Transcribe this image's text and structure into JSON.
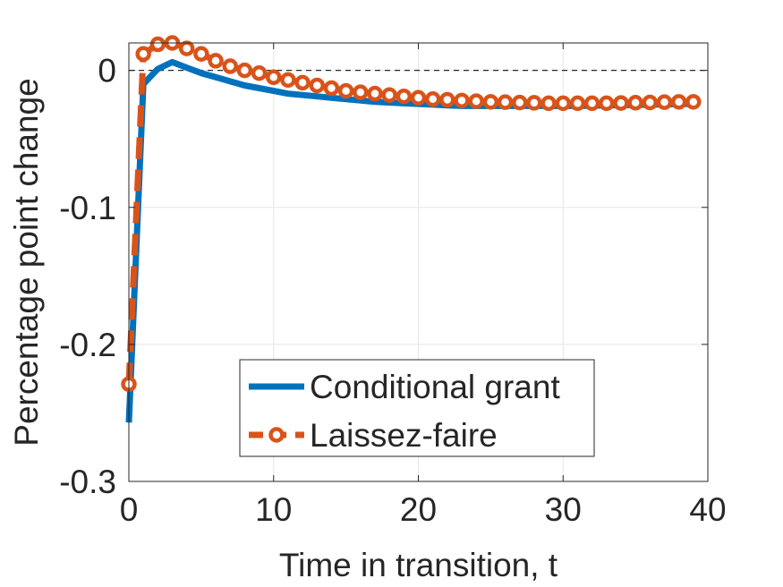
{
  "chart_data": {
    "type": "line",
    "title": "",
    "xlabel": "Time in transition, t",
    "ylabel": "Percentage point change",
    "xlim": [
      0,
      40
    ],
    "ylim": [
      -0.3,
      0.02
    ],
    "xticks": [
      0,
      10,
      20,
      30,
      40
    ],
    "xtick_labels": [
      "0",
      "10",
      "20",
      "30",
      "40"
    ],
    "yticks": [
      0,
      -0.1,
      -0.2,
      -0.3
    ],
    "ytick_labels": [
      "0",
      "-0.1",
      "-0.2",
      "-0.3"
    ],
    "grid": true,
    "zero_reference_line": true,
    "legend_position": "lower-center",
    "series": [
      {
        "name": "Conditional grant",
        "color": "#0072BD",
        "style": "solid",
        "marker": "none",
        "x": [
          0,
          1,
          2,
          3,
          4,
          5,
          6,
          7,
          8,
          9,
          10,
          11,
          12,
          13,
          14,
          15,
          16,
          17,
          18,
          19,
          20,
          21,
          22,
          23,
          24,
          25,
          26,
          27,
          28,
          29,
          30,
          31,
          32,
          33,
          34,
          35,
          36,
          37,
          38,
          39
        ],
        "y": [
          -0.257,
          -0.01,
          0.001,
          0.006,
          0.002,
          -0.002,
          -0.005,
          -0.008,
          -0.011,
          -0.013,
          -0.015,
          -0.017,
          -0.018,
          -0.019,
          -0.02,
          -0.021,
          -0.022,
          -0.023,
          -0.0235,
          -0.024,
          -0.0245,
          -0.025,
          -0.0255,
          -0.026,
          -0.026,
          -0.026,
          -0.026,
          -0.026,
          -0.026,
          -0.026,
          -0.026,
          -0.026,
          -0.0258,
          -0.0256,
          -0.0254,
          -0.0252,
          -0.025,
          -0.0248,
          -0.0246,
          -0.0244
        ]
      },
      {
        "name": "Laissez-faire",
        "color": "#D95319",
        "style": "dashed",
        "marker": "circle",
        "x": [
          0,
          1,
          2,
          3,
          4,
          5,
          6,
          7,
          8,
          9,
          10,
          11,
          12,
          13,
          14,
          15,
          16,
          17,
          18,
          19,
          20,
          21,
          22,
          23,
          24,
          25,
          26,
          27,
          28,
          29,
          30,
          31,
          32,
          33,
          34,
          35,
          36,
          37,
          38,
          39
        ],
        "y": [
          -0.229,
          0.012,
          0.019,
          0.02,
          0.016,
          0.012,
          0.007,
          0.003,
          0.0,
          -0.002,
          -0.005,
          -0.007,
          -0.009,
          -0.011,
          -0.013,
          -0.015,
          -0.016,
          -0.017,
          -0.018,
          -0.019,
          -0.02,
          -0.021,
          -0.0215,
          -0.022,
          -0.0225,
          -0.023,
          -0.0232,
          -0.0235,
          -0.0237,
          -0.024,
          -0.024,
          -0.024,
          -0.024,
          -0.024,
          -0.0238,
          -0.0236,
          -0.0234,
          -0.0232,
          -0.023,
          -0.023
        ]
      }
    ]
  }
}
